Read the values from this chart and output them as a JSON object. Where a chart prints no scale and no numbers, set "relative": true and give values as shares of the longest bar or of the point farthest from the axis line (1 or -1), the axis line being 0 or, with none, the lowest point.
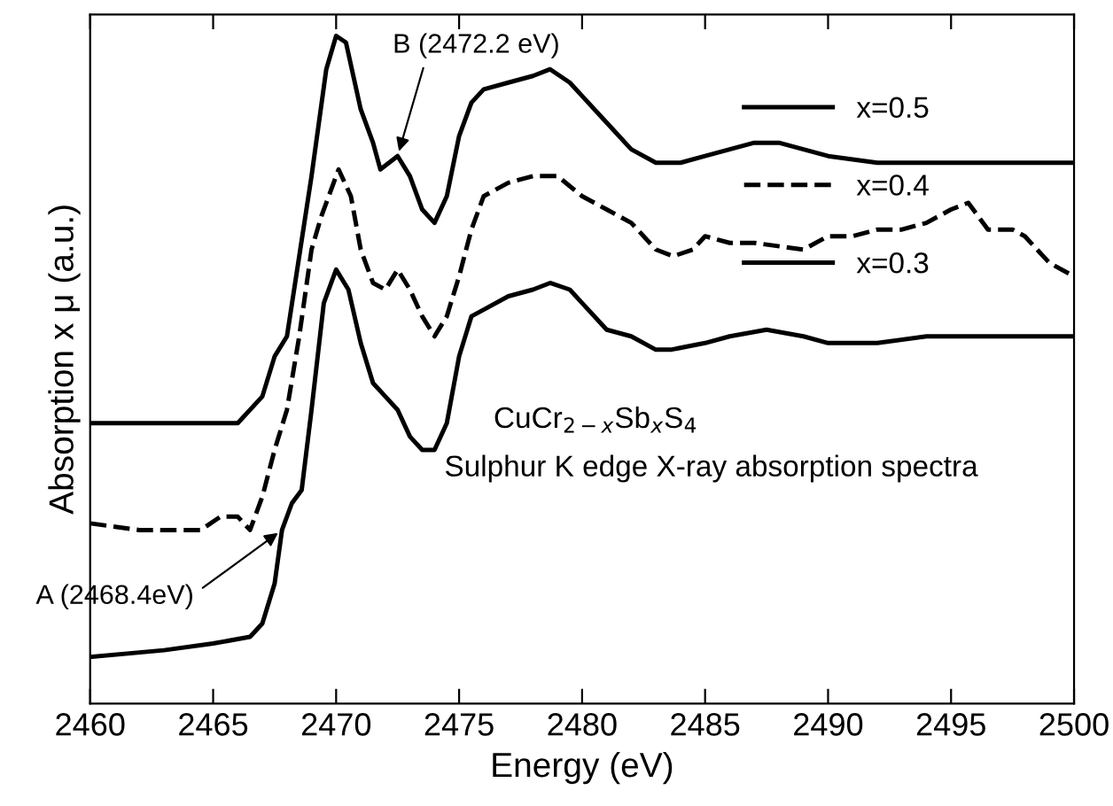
{
  "chart_data": {
    "type": "line",
    "relative": true,
    "xlabel": "Energy (eV)",
    "ylabel": "Absorption x μ (a.u.)",
    "xlim": [
      2460,
      2500
    ],
    "xticks": [
      2460,
      2465,
      2470,
      2475,
      2480,
      2485,
      2490,
      2495,
      2500
    ],
    "tick_labels": "x",
    "grid": false,
    "legend": "top right",
    "series": [
      {
        "name": "x=0.5",
        "color": "#000000",
        "line_style": "solid",
        "x": [
          2460,
          2463,
          2466,
          2467,
          2467.5,
          2468,
          2469,
          2469.6,
          2470,
          2470.4,
          2471,
          2471.5,
          2471.8,
          2472.5,
          2473,
          2473.5,
          2474,
          2474.5,
          2475,
          2475.5,
          2476,
          2477,
          2478,
          2478.7,
          2479.5,
          2480,
          2481,
          2482,
          2483,
          2484,
          2485,
          2487,
          2488,
          2490,
          2492,
          2495,
          2498,
          2500
        ],
        "values": [
          0.42,
          0.42,
          0.42,
          0.46,
          0.52,
          0.55,
          0.79,
          0.95,
          1.0,
          0.99,
          0.89,
          0.84,
          0.8,
          0.82,
          0.79,
          0.74,
          0.72,
          0.76,
          0.85,
          0.9,
          0.92,
          0.93,
          0.94,
          0.95,
          0.93,
          0.91,
          0.87,
          0.83,
          0.81,
          0.81,
          0.82,
          0.84,
          0.84,
          0.82,
          0.81,
          0.81,
          0.81,
          0.81
        ]
      },
      {
        "name": "x=0.4",
        "color": "#000000",
        "line_style": "dashed",
        "x": [
          2460,
          2462,
          2464.5,
          2465.3,
          2466,
          2466.5,
          2467,
          2467.5,
          2468,
          2468.5,
          2469,
          2469.4,
          2469.7,
          2470.1,
          2470.6,
          2471,
          2471.5,
          2472,
          2472.5,
          2473,
          2473.5,
          2474,
          2474.5,
          2475,
          2475.5,
          2476,
          2477,
          2478,
          2479,
          2480,
          2481,
          2482,
          2483,
          2483.7,
          2484.5,
          2485,
          2486,
          2487,
          2489,
          2490,
          2491,
          2492,
          2493,
          2494,
          2495,
          2495.7,
          2496.5,
          2497.5,
          2498,
          2499,
          2500
        ],
        "values": [
          0.27,
          0.26,
          0.26,
          0.28,
          0.28,
          0.26,
          0.31,
          0.38,
          0.44,
          0.55,
          0.68,
          0.73,
          0.76,
          0.8,
          0.76,
          0.68,
          0.63,
          0.62,
          0.65,
          0.62,
          0.58,
          0.55,
          0.58,
          0.64,
          0.71,
          0.76,
          0.78,
          0.79,
          0.79,
          0.76,
          0.74,
          0.72,
          0.68,
          0.67,
          0.68,
          0.7,
          0.69,
          0.69,
          0.68,
          0.7,
          0.7,
          0.71,
          0.71,
          0.72,
          0.74,
          0.75,
          0.71,
          0.71,
          0.7,
          0.66,
          0.64
        ]
      },
      {
        "name": "x=0.3",
        "color": "#000000",
        "line_style": "solid",
        "x": [
          2460,
          2463,
          2465,
          2466.5,
          2467,
          2467.5,
          2467.8,
          2468.2,
          2468.6,
          2469,
          2469.5,
          2469.8,
          2470,
          2470.5,
          2471,
          2471.5,
          2472,
          2472.5,
          2473,
          2473.5,
          2474,
          2474.5,
          2475,
          2475.5,
          2476,
          2477,
          2478,
          2478.7,
          2479.5,
          2480,
          2481,
          2482,
          2483,
          2483.6,
          2485,
          2486,
          2487.5,
          2489,
          2490,
          2492,
          2494,
          2496,
          2498,
          2500
        ],
        "values": [
          0.07,
          0.08,
          0.09,
          0.1,
          0.12,
          0.18,
          0.26,
          0.3,
          0.32,
          0.44,
          0.6,
          0.63,
          0.65,
          0.62,
          0.54,
          0.48,
          0.46,
          0.44,
          0.4,
          0.38,
          0.38,
          0.42,
          0.52,
          0.58,
          0.59,
          0.61,
          0.62,
          0.63,
          0.62,
          0.6,
          0.56,
          0.55,
          0.53,
          0.53,
          0.54,
          0.55,
          0.56,
          0.55,
          0.54,
          0.54,
          0.55,
          0.55,
          0.55,
          0.55
        ]
      }
    ],
    "annotations": [
      {
        "text": "B (2472.2 eV)",
        "x": 2472.5,
        "y": 0.82
      },
      {
        "text": "A (2468.4eV)",
        "x": 2467.8,
        "y": 0.26
      },
      "CuCr$_{2−x}$Sb$_{x}$S$_{4}$",
      "Sulphur K edge X-ray absorption spectra"
    ]
  }
}
